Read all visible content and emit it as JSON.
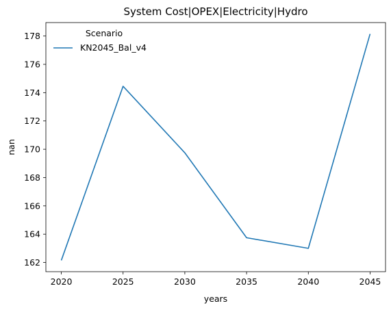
{
  "chart_data": {
    "type": "line",
    "title": "System Cost|OPEX|Electricity|Hydro",
    "xlabel": "years",
    "ylabel": "nan",
    "x": [
      2020,
      2025,
      2030,
      2035,
      2040,
      2045
    ],
    "series": [
      {
        "name": "KN2045_Bal_v4",
        "color": "#1f77b4",
        "values": [
          162.15,
          174.45,
          169.75,
          163.75,
          163.0,
          178.15
        ]
      }
    ],
    "xticks": [
      2020,
      2025,
      2030,
      2035,
      2040,
      2045
    ],
    "yticks": [
      162,
      164,
      166,
      168,
      170,
      172,
      174,
      176,
      178
    ],
    "xlim": [
      2018.75,
      2046.25
    ],
    "ylim": [
      161.35,
      178.95
    ],
    "legend": {
      "title": "Scenario",
      "placement": "top-left"
    },
    "grid": false
  }
}
